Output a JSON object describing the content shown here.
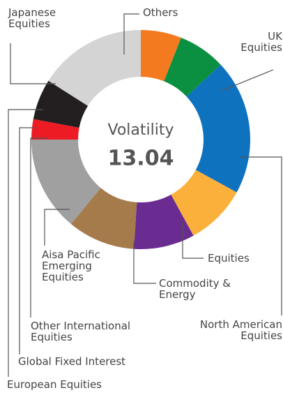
{
  "chart_data": {
    "type": "donut",
    "center_label": "Volatility",
    "center_value": "13.04",
    "categories": [
      "Others",
      "UK Equities",
      "North American Equities",
      "Equities",
      "Commodity & Energy",
      "Aisa Pacific Emerging Equities",
      "Other International Equities",
      "Global Fixed Interest",
      "European Equities",
      "Japanese Equities"
    ],
    "values": [
      6,
      7,
      20,
      9,
      9,
      10,
      14,
      3,
      6,
      16
    ],
    "colors": [
      "#f47a20",
      "#0a9040",
      "#0f72bf",
      "#fbb03b",
      "#6a2c91",
      "#a57b4b",
      "#a0a0a0",
      "#ed1c24",
      "#231f20",
      "#d4d4d4"
    ]
  }
}
